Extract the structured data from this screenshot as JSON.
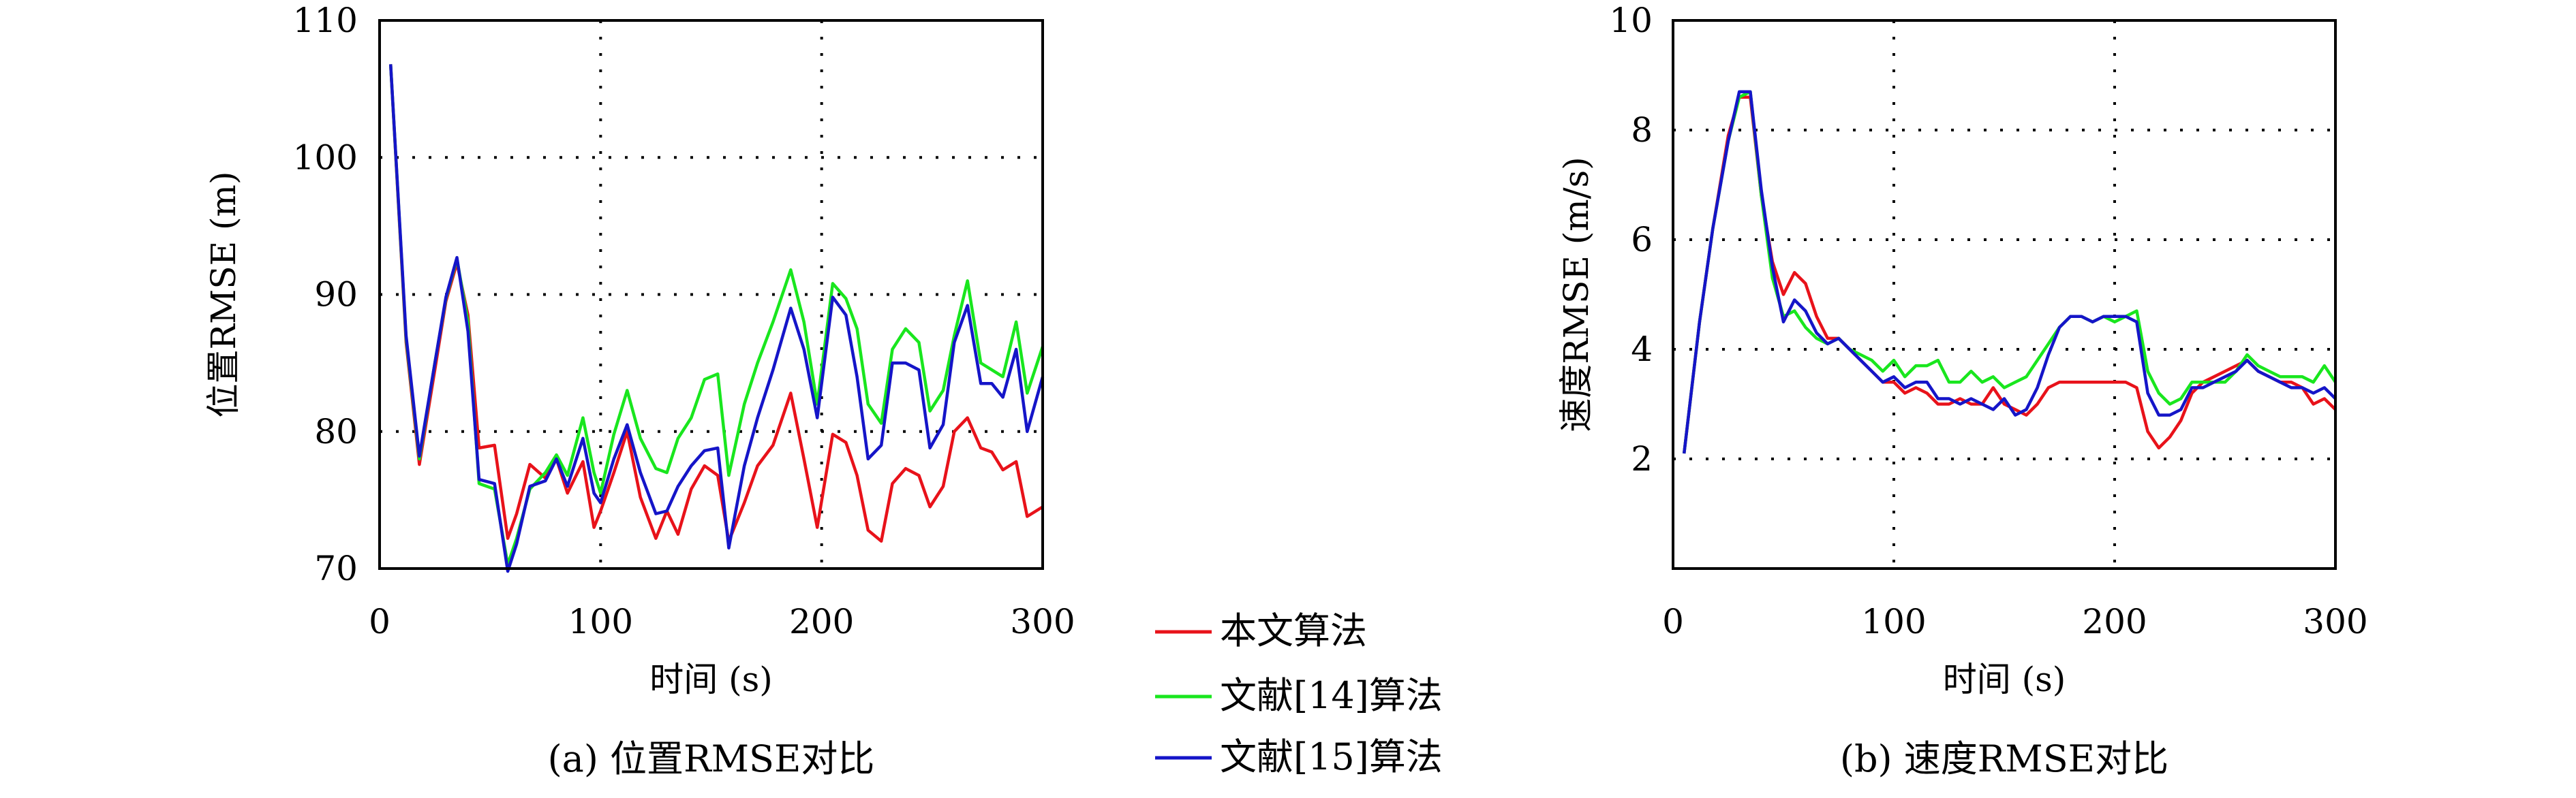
{
  "chart_data": [
    {
      "type": "line",
      "caption": "(a) 位置RMSE对比",
      "xlabel": "时间 (s)",
      "ylabel": "位置RMSE (m)",
      "xlim": [
        0,
        300
      ],
      "ylim": [
        70,
        110
      ],
      "xticks": [
        0,
        100,
        200,
        300
      ],
      "yticks": [
        70,
        80,
        90,
        100,
        110
      ],
      "grid": true,
      "x": [
        5,
        12,
        18,
        25,
        30,
        35,
        40,
        45,
        52,
        58,
        62,
        68,
        75,
        80,
        85,
        92,
        97,
        100,
        106,
        112,
        118,
        125,
        130,
        135,
        141,
        147,
        153,
        158,
        165,
        171,
        178,
        186,
        192,
        198,
        205,
        211,
        216,
        221,
        227,
        232,
        238,
        244,
        249,
        255,
        260,
        266,
        272,
        277,
        282,
        288,
        293,
        300
      ],
      "series": [
        {
          "name": "本文算法",
          "color": "#e8121a",
          "values": [
            106.8,
            86.5,
            77.6,
            84.5,
            89.5,
            92.3,
            88.5,
            78.8,
            79.0,
            72.2,
            74.0,
            77.6,
            76.6,
            78.0,
            75.5,
            77.8,
            73.0,
            74.2,
            77.0,
            80.0,
            75.2,
            72.2,
            74.2,
            72.5,
            75.8,
            77.5,
            76.8,
            72.0,
            74.8,
            77.5,
            79.0,
            82.8,
            78.0,
            73.0,
            79.8,
            79.2,
            76.8,
            72.8,
            72.0,
            76.2,
            77.3,
            76.8,
            74.5,
            76.0,
            80.0,
            81.0,
            78.8,
            78.5,
            77.2,
            77.8,
            73.8,
            74.5
          ]
        },
        {
          "name": "文献[14]算法",
          "color": "#19e61e",
          "values": [
            106.8,
            86.8,
            78.0,
            85.0,
            89.7,
            92.6,
            88.0,
            76.2,
            75.8,
            70.3,
            72.2,
            75.8,
            77.0,
            78.3,
            76.8,
            81.0,
            77.0,
            75.5,
            79.8,
            83.0,
            79.5,
            77.3,
            77.0,
            79.5,
            81.0,
            83.8,
            84.2,
            76.8,
            82.0,
            85.0,
            88.0,
            91.8,
            88.0,
            82.0,
            90.8,
            89.7,
            87.5,
            82.0,
            80.6,
            86.0,
            87.5,
            86.5,
            81.5,
            83.0,
            87.0,
            91.0,
            85.0,
            84.5,
            84.0,
            88.0,
            82.8,
            86.2
          ]
        },
        {
          "name": "文献[15]算法",
          "color": "#1515c8",
          "values": [
            106.8,
            87.0,
            78.2,
            85.0,
            89.8,
            92.7,
            87.3,
            76.5,
            76.2,
            69.8,
            71.8,
            76.0,
            76.4,
            78.0,
            76.0,
            79.5,
            75.5,
            74.8,
            78.0,
            80.5,
            77.0,
            74.0,
            74.2,
            76.0,
            77.5,
            78.6,
            78.8,
            71.5,
            77.5,
            81.0,
            84.5,
            89.0,
            86.0,
            81.0,
            89.8,
            88.5,
            84.0,
            78.0,
            79.0,
            85.0,
            85.0,
            84.5,
            78.8,
            80.5,
            86.5,
            89.2,
            83.5,
            83.5,
            82.5,
            86.0,
            80.0,
            84.0
          ]
        }
      ]
    },
    {
      "type": "line",
      "caption": "(b) 速度RMSE对比",
      "xlabel": "时间 (s)",
      "ylabel": "速度RMSE (m/s)",
      "xlim": [
        0,
        300
      ],
      "ylim": [
        0,
        10
      ],
      "xticks": [
        0,
        100,
        200,
        300
      ],
      "yticks": [
        2,
        4,
        6,
        8,
        10
      ],
      "grid": true,
      "x": [
        5,
        12,
        18,
        25,
        30,
        35,
        40,
        45,
        50,
        55,
        60,
        65,
        70,
        75,
        80,
        85,
        90,
        95,
        100,
        105,
        110,
        115,
        120,
        125,
        130,
        135,
        140,
        145,
        150,
        155,
        160,
        165,
        170,
        175,
        180,
        185,
        190,
        195,
        200,
        205,
        210,
        215,
        220,
        225,
        230,
        235,
        240,
        245,
        250,
        255,
        260,
        265,
        270,
        275,
        280,
        285,
        290,
        295,
        300
      ],
      "series": [
        {
          "name": "本文算法",
          "color": "#e8121a",
          "values": [
            2.1,
            4.5,
            6.2,
            7.9,
            8.6,
            8.6,
            6.8,
            5.6,
            5.0,
            5.4,
            5.2,
            4.6,
            4.2,
            4.2,
            4.0,
            3.8,
            3.6,
            3.4,
            3.4,
            3.2,
            3.3,
            3.2,
            3.0,
            3.0,
            3.1,
            3.0,
            3.0,
            3.3,
            3.0,
            2.9,
            2.8,
            3.0,
            3.3,
            3.4,
            3.4,
            3.4,
            3.4,
            3.4,
            3.4,
            3.4,
            3.3,
            2.5,
            2.2,
            2.4,
            2.7,
            3.2,
            3.4,
            3.5,
            3.6,
            3.7,
            3.8,
            3.6,
            3.5,
            3.4,
            3.4,
            3.3,
            3.0,
            3.1,
            2.9
          ]
        },
        {
          "name": "文献[14]算法",
          "color": "#19e61e",
          "values": [
            2.1,
            4.5,
            6.2,
            7.8,
            8.6,
            8.7,
            6.8,
            5.3,
            4.6,
            4.7,
            4.4,
            4.2,
            4.1,
            4.2,
            4.0,
            3.9,
            3.8,
            3.6,
            3.8,
            3.5,
            3.7,
            3.7,
            3.8,
            3.4,
            3.4,
            3.6,
            3.4,
            3.5,
            3.3,
            3.4,
            3.5,
            3.8,
            4.1,
            4.4,
            4.6,
            4.6,
            4.5,
            4.6,
            4.5,
            4.6,
            4.7,
            3.6,
            3.2,
            3.0,
            3.1,
            3.4,
            3.4,
            3.4,
            3.4,
            3.6,
            3.9,
            3.7,
            3.6,
            3.5,
            3.5,
            3.5,
            3.4,
            3.7,
            3.4
          ]
        },
        {
          "name": "文献[15]算法",
          "color": "#1515c8",
          "values": [
            2.1,
            4.5,
            6.2,
            7.8,
            8.7,
            8.7,
            6.9,
            5.5,
            4.5,
            4.9,
            4.7,
            4.3,
            4.1,
            4.2,
            4.0,
            3.8,
            3.6,
            3.4,
            3.5,
            3.3,
            3.4,
            3.4,
            3.1,
            3.1,
            3.0,
            3.1,
            3.0,
            2.9,
            3.1,
            2.8,
            2.9,
            3.3,
            3.9,
            4.4,
            4.6,
            4.6,
            4.5,
            4.6,
            4.6,
            4.6,
            4.5,
            3.2,
            2.8,
            2.8,
            2.9,
            3.3,
            3.3,
            3.4,
            3.5,
            3.6,
            3.8,
            3.6,
            3.5,
            3.4,
            3.3,
            3.3,
            3.2,
            3.3,
            3.1
          ]
        }
      ]
    }
  ]
}
